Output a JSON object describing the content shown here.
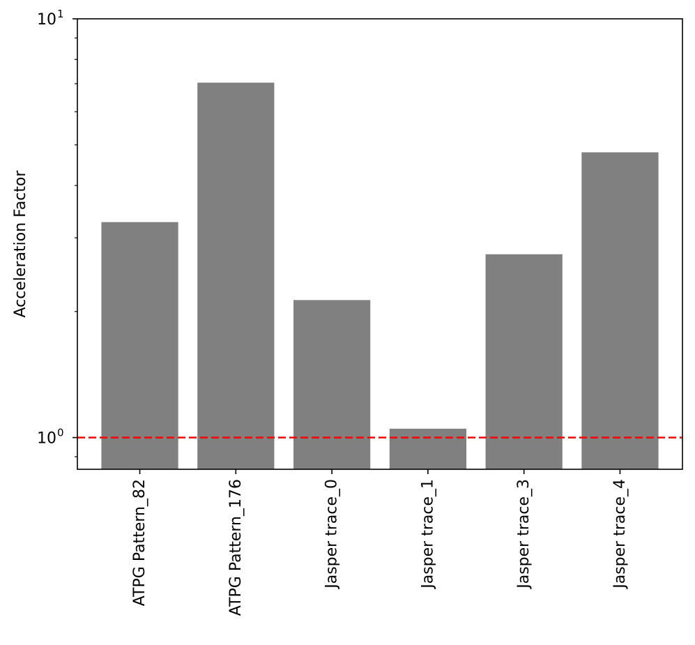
{
  "chart_data": {
    "type": "bar",
    "title": "",
    "xlabel": "",
    "ylabel": "Acceleration Factor",
    "y_scale": "log",
    "ylim": [
      0.84,
      10
    ],
    "y_major_ticks": [
      {
        "value": 1,
        "base": "10",
        "exponent": "0"
      },
      {
        "value": 10,
        "base": "10",
        "exponent": "1"
      }
    ],
    "categories": [
      "ATPG Pattern_82",
      "ATPG Pattern_176",
      "Jasper trace_0",
      "Jasper trace_1",
      "Jasper trace_3",
      "Jasper trace_4"
    ],
    "values": [
      3.27,
      7.04,
      2.13,
      1.05,
      2.74,
      4.8
    ],
    "bar_color": "#808080",
    "reference_line": {
      "value": 1,
      "style": "dashed",
      "color": "#ff0000"
    },
    "grid": false,
    "legend": "none"
  }
}
